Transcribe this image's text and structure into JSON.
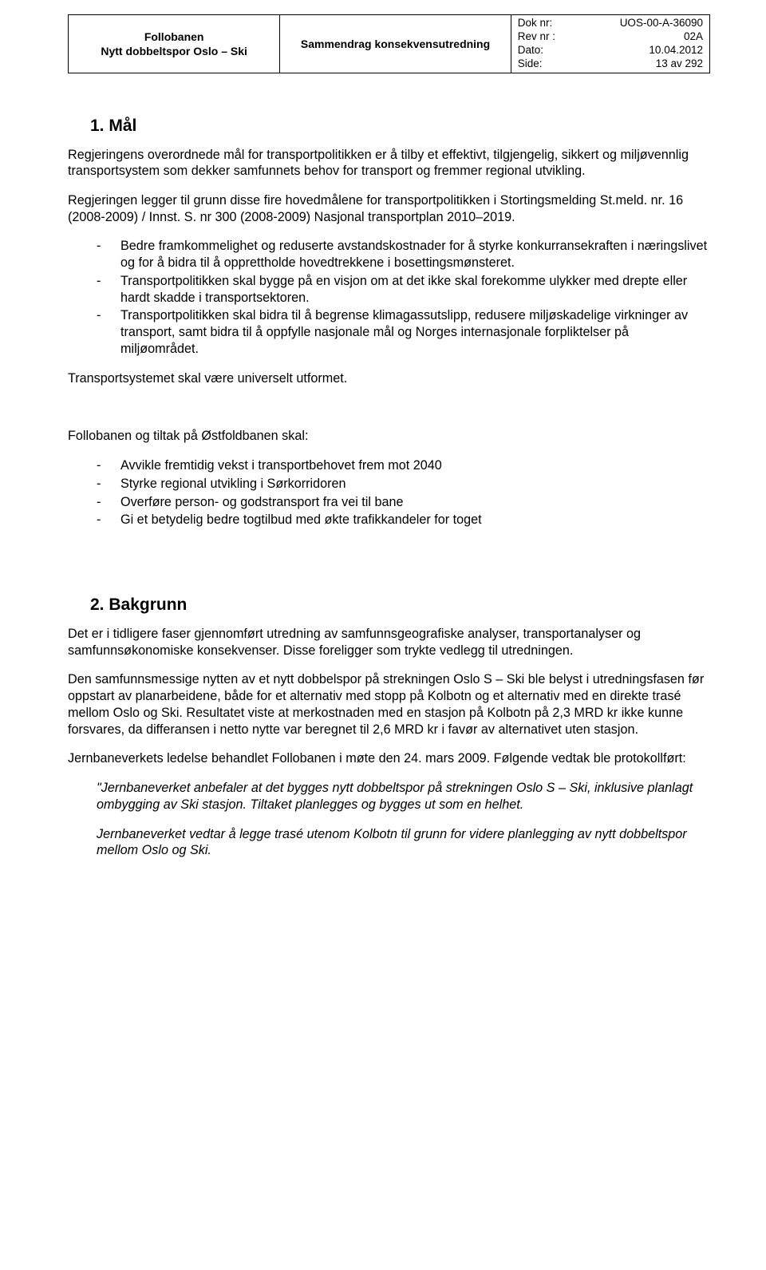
{
  "header": {
    "col1_line1": "Follobanen",
    "col1_line2": "Nytt dobbeltspor Oslo – Ski",
    "col2": "Sammendrag konsekvensutredning",
    "meta": [
      {
        "label": "Dok nr:",
        "value": "UOS-00-A-36090"
      },
      {
        "label": "Rev nr :",
        "value": "02A"
      },
      {
        "label": "Dato:",
        "value": "10.04.2012"
      },
      {
        "label": "Side:",
        "value": "13 av 292"
      }
    ]
  },
  "section1": {
    "title": "1. Mål",
    "p1": "Regjeringens overordnede mål for transportpolitikken er å tilby et effektivt, tilgjengelig, sikkert og miljøvennlig transportsystem som dekker samfunnets behov for transport og fremmer regional utvikling.",
    "p2": "Regjeringen legger til grunn disse fire hovedmålene for transportpolitikken i Stortingsmelding St.meld. nr. 16 (2008-2009) / Innst. S. nr 300 (2008-2009) Nasjonal transportplan 2010–2019.",
    "bullets": [
      "Bedre framkommelighet og reduserte avstandskostnader for å styrke konkurransekraften i næringslivet og for å bidra til å opprettholde hovedtrekkene i bosettingsmønsteret.",
      "Transportpolitikken skal bygge på en visjon om at det ikke skal forekomme ulykker med drepte eller hardt skadde i transportsektoren.",
      "Transportpolitikken skal bidra til å begrense klimagassutslipp, redusere miljøskadelige virkninger av transport, samt bidra til å oppfylle nasjonale mål og Norges internasjonale forpliktelser på miljøområdet."
    ],
    "p3": "Transportsystemet skal være universelt utformet.",
    "p4": "Follobanen og tiltak på Østfoldbanen skal:",
    "bullets2": [
      "Avvikle fremtidig vekst i transportbehovet frem mot 2040",
      "Styrke regional utvikling i Sørkorridoren",
      "Overføre person- og godstransport fra vei til bane",
      "Gi et betydelig bedre togtilbud med økte trafikkandeler for toget"
    ]
  },
  "section2": {
    "title": "2. Bakgrunn",
    "p1": "Det er i tidligere faser gjennomført utredning av samfunnsgeografiske analyser, transportanalyser og samfunnsøkonomiske konsekvenser. Disse foreligger som trykte vedlegg til utredningen.",
    "p2": "Den samfunnsmessige nytten av et nytt dobbelspor på strekningen Oslo S – Ski ble belyst i utredningsfasen før oppstart av planarbeidene, både for et alternativ med stopp på Kolbotn og et alternativ med en direkte trasé mellom Oslo og Ski. Resultatet viste at merkostnaden med en stasjon på Kolbotn på 2,3 MRD kr ikke kunne forsvares, da differansen i netto nytte var beregnet til 2,6 MRD kr i favør av alternativet uten stasjon.",
    "p3": "Jernbaneverkets ledelse behandlet Follobanen i møte den 24. mars 2009. Følgende vedtak ble protokollført:",
    "quote1": "\"Jernbaneverket anbefaler at det bygges nytt dobbeltspor på strekningen Oslo S – Ski, inklusive planlagt ombygging av Ski stasjon. Tiltaket planlegges og bygges ut som en helhet.",
    "quote2": "Jernbaneverket vedtar å legge trasé utenom Kolbotn til grunn for videre planlegging av nytt dobbeltspor mellom Oslo og Ski."
  }
}
